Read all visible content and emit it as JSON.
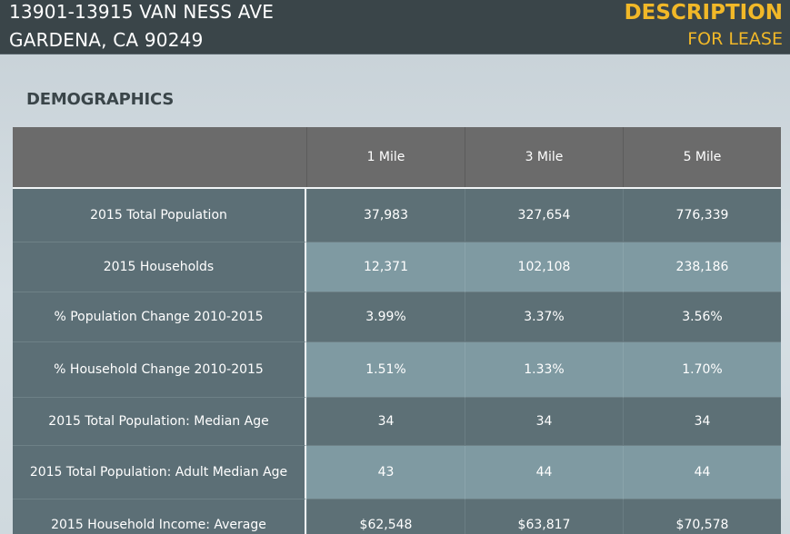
{
  "header": {
    "address_line1": "13901-13915 VAN NESS AVE",
    "address_line2": "GARDENA, CA 90249",
    "title": "DESCRIPTION",
    "subtitle": "FOR LEASE"
  },
  "section_title": "DEMOGRAPHICS",
  "table": {
    "columns": [
      "",
      "1 Mile",
      "3 Mile",
      "5 Mile"
    ],
    "rows": [
      {
        "label": "2015 Total Population",
        "values": [
          "37,983",
          "327,654",
          "776,339"
        ]
      },
      {
        "label": "2015 Households",
        "values": [
          "12,371",
          "102,108",
          "238,186"
        ]
      },
      {
        "label": "% Population Change 2010-2015",
        "values": [
          "3.99%",
          "3.37%",
          "3.56%"
        ]
      },
      {
        "label": "% Household Change 2010-2015",
        "values": [
          "1.51%",
          "1.33%",
          "1.70%"
        ]
      },
      {
        "label": "2015 Total Population: Median Age",
        "values": [
          "34",
          "34",
          "34"
        ]
      },
      {
        "label": "2015 Total Population: Adult Median Age",
        "values": [
          "43",
          "44",
          "44"
        ]
      },
      {
        "label": "2015 Household Income: Average",
        "values": [
          "$62,548",
          "$63,817",
          "$70,578"
        ]
      }
    ]
  }
}
